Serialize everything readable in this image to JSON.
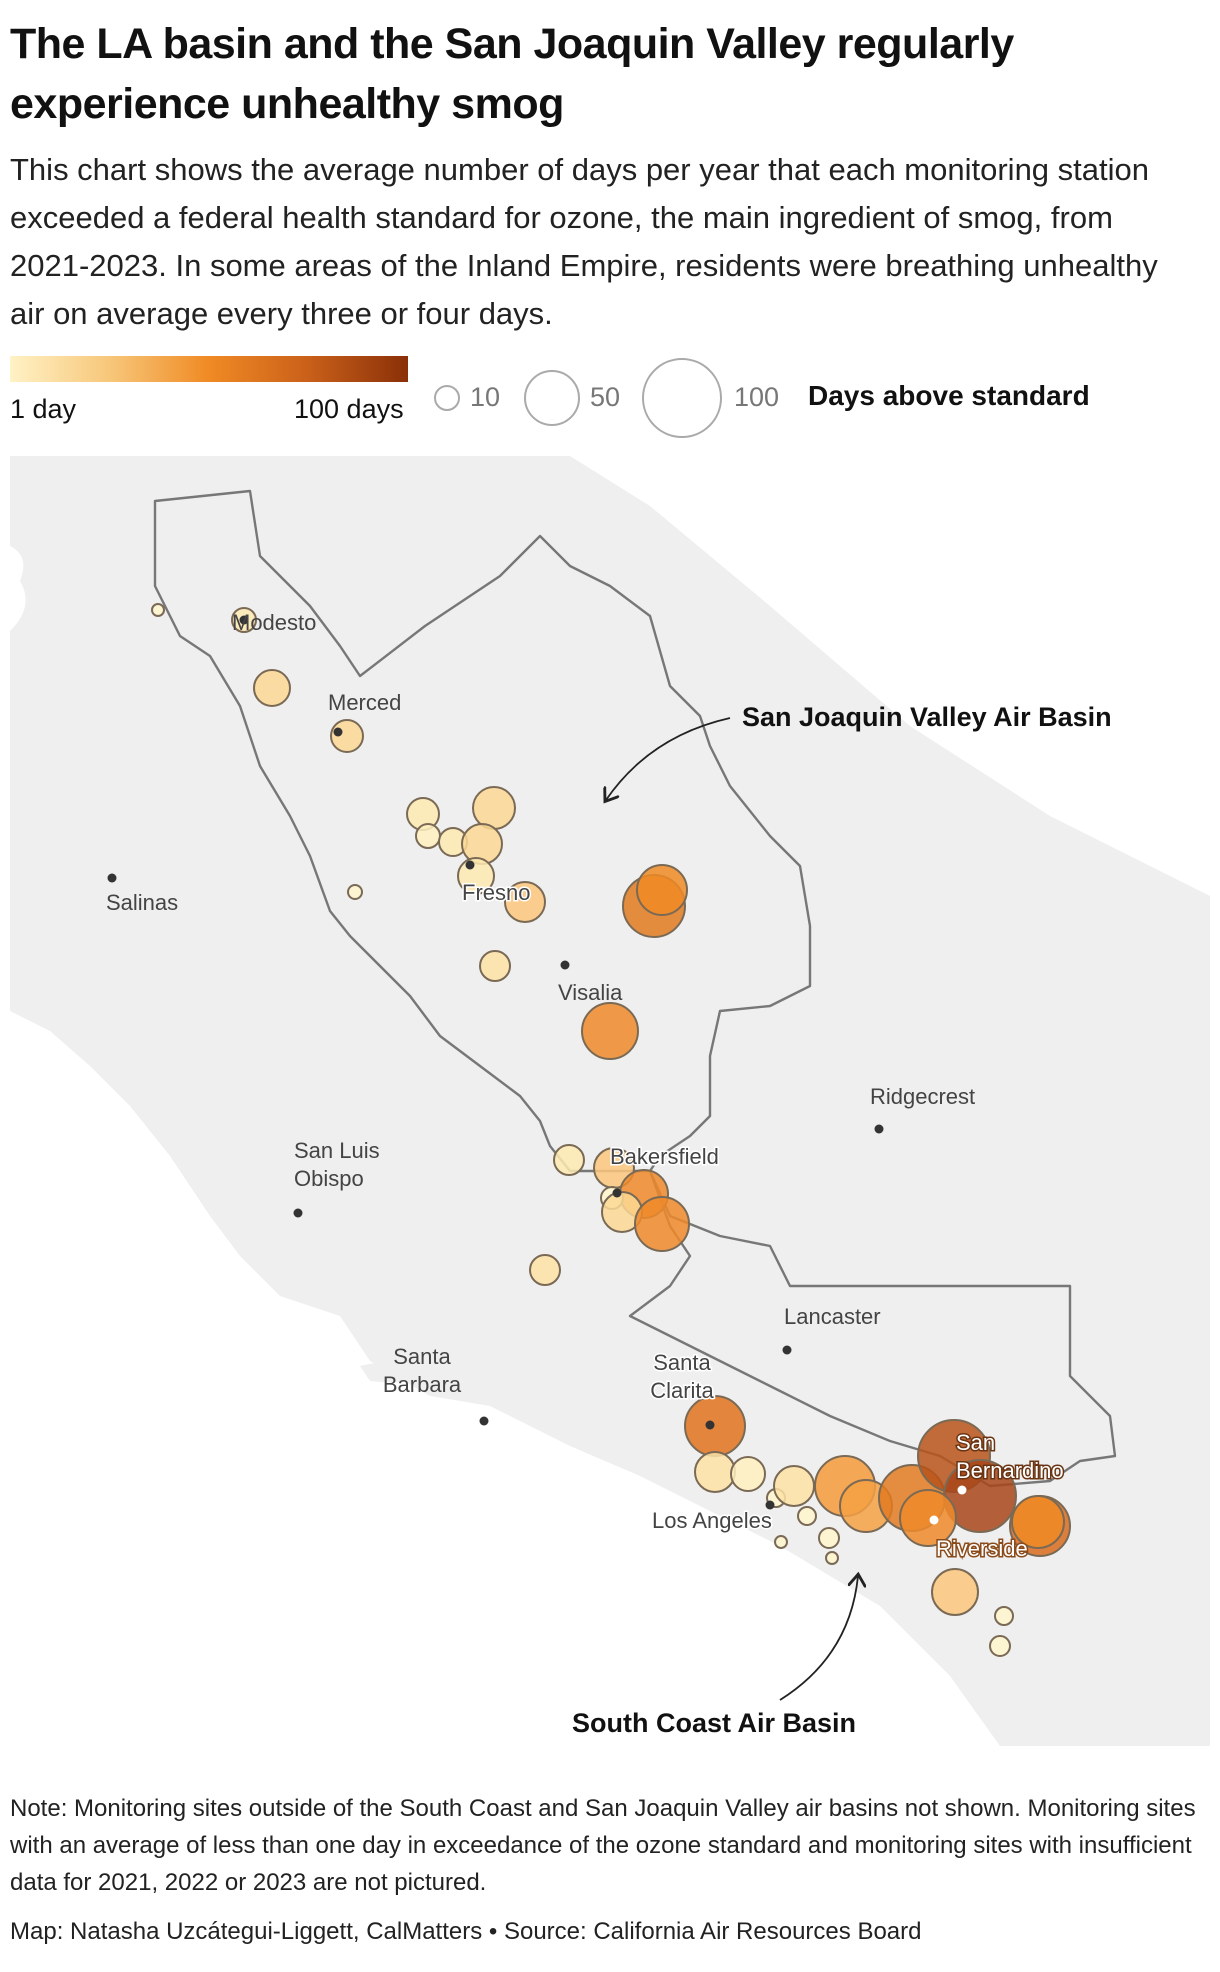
{
  "title": "The LA basin and the San Joaquin Valley regularly experience unhealthy smog",
  "subtitle": "This chart shows the average number of days per year that each monitoring station exceeded a federal health standard for ozone, the main ingredient of smog, from 2021-2023. In some areas of the Inland Empire, residents were breathing unhealthy air on average every three or four days.",
  "legend": {
    "color_low": "1 day",
    "color_high": "100 days",
    "size_10": "10",
    "size_50": "50",
    "size_100": "100",
    "title": "Days above standard",
    "colors": [
      "#fff2c6",
      "#f7c77a",
      "#f08a24",
      "#c9601a",
      "#8a3008"
    ]
  },
  "map": {
    "cities": {
      "modesto": "Modesto",
      "merced": "Merced",
      "salinas": "Salinas",
      "fresno": "Fresno",
      "visalia": "Visalia",
      "ridgecrest": "Ridgecrest",
      "san_luis_obispo_1": "San Luis",
      "san_luis_obispo_2": "Obispo",
      "bakersfield": "Bakersfield",
      "lancaster": "Lancaster",
      "santa_barbara_1": "Santa",
      "santa_barbara_2": "Barbara",
      "santa_clarita_1": "Santa",
      "santa_clarita_2": "Clarita",
      "los_angeles": "Los Angeles",
      "san_bernardino_1": "San",
      "san_bernardino_2": "Bernardino",
      "riverside": "Riverside"
    },
    "annotations": {
      "sjv": "San Joaquin Valley Air Basin",
      "south_coast": "South Coast Air Basin"
    }
  },
  "note": "Note: Monitoring sites outside of the South Coast and San Joaquin Valley air basins not shown. Monitoring sites with an average of less than one day in exceedance of the ozone standard and monitoring sites with insufficient data for 2021, 2022 or 2023 are not pictured.",
  "credit": "Map: Natasha Uzcátegui-Liggett, CalMatters • Source: California Air Resources Board"
}
